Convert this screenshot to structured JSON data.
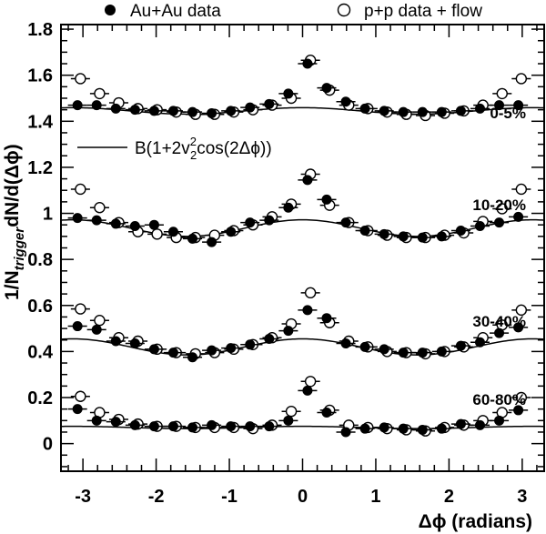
{
  "chart_data": {
    "type": "scatter",
    "legend": [
      {
        "marker": "filled-circle",
        "text": "Au+Au data"
      },
      {
        "marker": "open-circle",
        "text": "p+p data + flow"
      }
    ],
    "curve_label": {
      "prefix": "B(1+2v",
      "sup": "2",
      "sub": "2",
      "suffix": "cos(2Δϕ))"
    },
    "ylabel": {
      "prefix": "1/N",
      "sub": "trigger",
      "suffix": "dN/d(Δϕ)"
    },
    "xlabel": "Δϕ (radians)",
    "xlim": [
      -3.3,
      3.3
    ],
    "ylim": [
      -0.12,
      1.82
    ],
    "x_ticks": [
      -3,
      -2,
      -1,
      0,
      1,
      2,
      3
    ],
    "y_ticks": [
      "0",
      "0.2",
      "0.4",
      "0.6",
      "0.8",
      "1",
      "1.2",
      "1.4",
      "1.6",
      "1.8"
    ],
    "bin_halfwidth": 0.1309,
    "x": [
      -3.0543,
      -2.7925,
      -2.5307,
      -2.2689,
      -2.0071,
      -1.7453,
      -1.4835,
      -1.2217,
      -0.9599,
      -0.6981,
      -0.4363,
      -0.1745,
      0.0873,
      0.3491,
      0.6109,
      0.8727,
      1.1345,
      1.3963,
      1.6581,
      1.9199,
      2.1817,
      2.4435,
      2.7053,
      2.9671
    ],
    "panels": [
      {
        "label": "0-5%",
        "baseline_B": 1.445,
        "v2_amp": 0.014,
        "au_au": [
          1.47,
          1.47,
          1.455,
          1.45,
          1.445,
          1.445,
          1.44,
          1.435,
          1.445,
          1.46,
          1.475,
          1.52,
          1.65,
          1.545,
          1.485,
          1.455,
          1.445,
          1.44,
          1.44,
          1.44,
          1.445,
          1.455,
          1.47,
          1.47
        ],
        "pp_flow": [
          1.585,
          1.52,
          1.48,
          1.455,
          1.45,
          1.44,
          1.43,
          1.43,
          1.44,
          1.45,
          1.47,
          1.5,
          1.665,
          1.535,
          1.47,
          1.455,
          1.44,
          1.43,
          1.425,
          1.435,
          1.445,
          1.47,
          1.52,
          1.585
        ]
      },
      {
        "label": "10-20%",
        "baseline_B": 0.936,
        "v2_amp": 0.036,
        "au_au": [
          0.98,
          0.97,
          0.955,
          0.945,
          0.95,
          0.92,
          0.89,
          0.875,
          0.92,
          0.96,
          0.97,
          1.025,
          1.145,
          1.06,
          0.96,
          0.925,
          0.91,
          0.9,
          0.895,
          0.9,
          0.925,
          0.945,
          0.96,
          0.985
        ],
        "pp_flow": [
          1.105,
          1.025,
          0.96,
          0.92,
          0.91,
          0.895,
          0.895,
          0.905,
          0.925,
          0.95,
          0.985,
          1.04,
          1.17,
          1.035,
          0.96,
          0.925,
          0.905,
          0.895,
          0.895,
          0.905,
          0.915,
          0.965,
          1.02,
          1.105
        ]
      },
      {
        "label": "30-40%",
        "baseline_B": 0.42,
        "v2_amp": 0.035,
        "au_au": [
          0.51,
          0.495,
          0.445,
          0.435,
          0.41,
          0.395,
          0.375,
          0.405,
          0.415,
          0.43,
          0.455,
          0.49,
          0.58,
          0.545,
          0.435,
          0.42,
          0.41,
          0.395,
          0.395,
          0.4,
          0.425,
          0.44,
          0.48,
          0.505
        ],
        "pp_flow": [
          0.585,
          0.535,
          0.46,
          0.445,
          0.41,
          0.395,
          0.39,
          0.395,
          0.41,
          0.43,
          0.46,
          0.52,
          0.655,
          0.525,
          0.445,
          0.42,
          0.4,
          0.395,
          0.39,
          0.4,
          0.42,
          0.46,
          0.515,
          0.58
        ]
      },
      {
        "label": "60-80%",
        "baseline_B": 0.07,
        "v2_amp": 0.005,
        "au_au": [
          0.15,
          0.1,
          0.095,
          0.08,
          0.075,
          0.075,
          0.07,
          0.08,
          0.075,
          0.075,
          0.075,
          0.1,
          0.23,
          0.135,
          0.05,
          0.065,
          0.07,
          0.065,
          0.06,
          0.065,
          0.085,
          0.08,
          0.1,
          0.145
        ],
        "pp_flow": [
          0.205,
          0.135,
          0.105,
          0.085,
          0.075,
          0.075,
          0.07,
          0.07,
          0.07,
          0.065,
          0.08,
          0.14,
          0.27,
          0.145,
          0.08,
          0.07,
          0.065,
          0.06,
          0.055,
          0.07,
          0.08,
          0.1,
          0.135,
          0.2
        ]
      }
    ],
    "error_bars": true,
    "grid": false,
    "legend_position": "top"
  }
}
